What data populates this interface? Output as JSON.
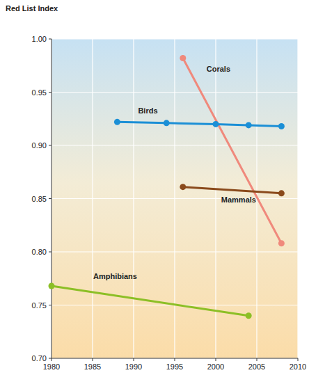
{
  "chart_data": {
    "type": "line",
    "y_label": "Red List Index",
    "xlim": [
      1980,
      2010
    ],
    "xticks": [
      1980,
      1985,
      1990,
      1995,
      2000,
      2005,
      2010
    ],
    "ylim": [
      0.7,
      1.0
    ],
    "yticks": [
      {
        "value": 0.7,
        "label": "0.70"
      },
      0.75,
      {
        "value": 0.8,
        "label": "0.80"
      },
      0.85,
      {
        "value": 0.9,
        "label": "0.90"
      },
      0.95,
      {
        "value": 1.0,
        "label": "1.00"
      }
    ],
    "grid": true,
    "marker": "circle",
    "series": [
      {
        "name": "Corals",
        "color": "#f0897c",
        "x": [
          1996,
          2008
        ],
        "values": [
          0.982,
          0.808
        ]
      },
      {
        "name": "Birds",
        "color": "#1b8fd6",
        "x": [
          1988,
          1994,
          2000,
          2004,
          2008
        ],
        "values": [
          0.922,
          0.921,
          0.92,
          0.919,
          0.918
        ]
      },
      {
        "name": "Mammals",
        "color": "#8a4a1c",
        "x": [
          1996,
          2008
        ],
        "values": [
          0.861,
          0.855
        ]
      },
      {
        "name": "Amphibians",
        "color": "#8cbf26",
        "x": [
          1980,
          2004
        ],
        "values": [
          0.768,
          0.74
        ]
      }
    ]
  }
}
